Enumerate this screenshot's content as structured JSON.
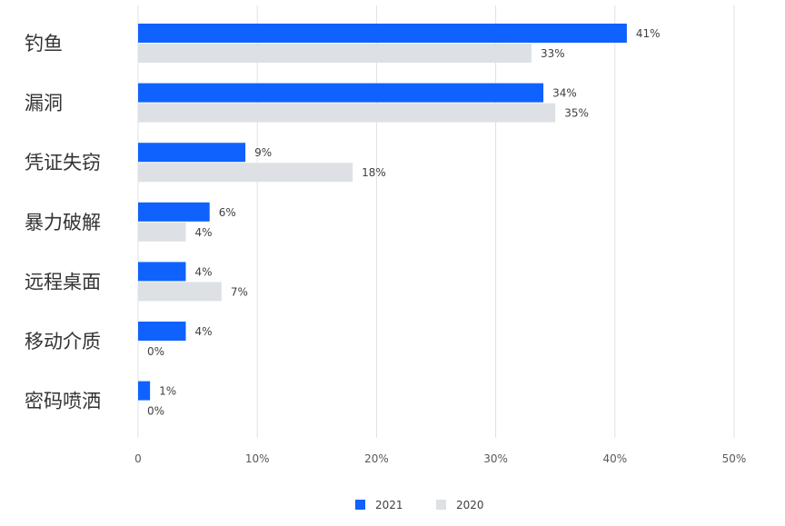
{
  "chart_data": {
    "type": "bar",
    "orientation": "horizontal",
    "categories": [
      "钓鱼",
      "漏洞",
      "凭证失窃",
      "暴力破解",
      "远程桌面",
      "移动介质",
      "密码喷洒"
    ],
    "series": [
      {
        "name": "2021",
        "color": "#0f62fe",
        "values": [
          41,
          34,
          9,
          6,
          4,
          4,
          1
        ],
        "labels": [
          "41%",
          "34%",
          "9%",
          "6%",
          "4%",
          "4%",
          "1%"
        ]
      },
      {
        "name": "2020",
        "color": "#dde1e6",
        "values": [
          33,
          35,
          18,
          4,
          7,
          0,
          0
        ],
        "labels": [
          "33%",
          "35%",
          "18%",
          "4%",
          "7%",
          "0%",
          "0%"
        ]
      }
    ],
    "xlim": [
      0,
      50
    ],
    "x_ticks": [
      0,
      10,
      20,
      30,
      40,
      50
    ],
    "x_tick_labels": [
      "0",
      "10%",
      "20%",
      "30%",
      "40%",
      "50%"
    ],
    "grid": "vertical",
    "legend_position": "bottom-center",
    "gridline_color": "#e0e0e0"
  }
}
